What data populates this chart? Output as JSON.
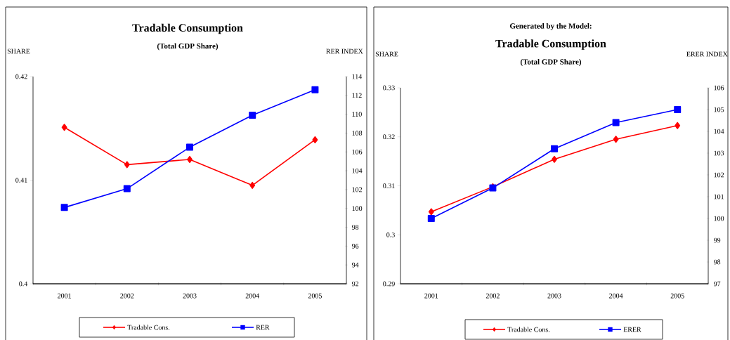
{
  "chart_data": [
    {
      "type": "line",
      "title": "Tradable Consumption",
      "subtitle": "(Total GDP Share)",
      "ylabel": "SHARE",
      "y2label": "RER INDEX",
      "categories": [
        "2001",
        "2002",
        "2003",
        "2004",
        "2005"
      ],
      "series": [
        {
          "name": "Tradable Cons.",
          "color": "#ff0000",
          "marker": "diamond",
          "values": [
            0.4151,
            0.4115,
            0.412,
            0.4095,
            0.4139
          ]
        },
        {
          "name": "RER",
          "color": "#0000ff",
          "marker": "square",
          "axis": "y2",
          "values": [
            100.1,
            102.1,
            106.5,
            109.9,
            112.6
          ]
        }
      ],
      "ylim": [
        0.4,
        0.42
      ],
      "yticks": [
        0.4,
        0.41,
        0.42
      ],
      "y2lim": [
        92,
        114
      ],
      "y2ticks": [
        92,
        94,
        96,
        98,
        100,
        102,
        104,
        106,
        108,
        110,
        112,
        114
      ],
      "legend": "bottom"
    },
    {
      "type": "line",
      "title": "Tradable Consumption",
      "subtitle": "(Total GDP Share)",
      "annotations": [
        "Generated by the Model:"
      ],
      "ylabel": "SHARE",
      "y2label": "ERER INDEX",
      "categories": [
        "2001",
        "2002",
        "2003",
        "2004",
        "2005"
      ],
      "series": [
        {
          "name": "Tradable Cons.",
          "color": "#ff0000",
          "marker": "diamond",
          "values": [
            0.3047,
            0.3098,
            0.3154,
            0.3195,
            0.3223
          ]
        },
        {
          "name": "ERER",
          "color": "#0000ff",
          "marker": "square",
          "axis": "y2",
          "values": [
            100.0,
            101.4,
            103.2,
            104.4,
            105.0
          ]
        }
      ],
      "ylim": [
        0.29,
        0.33
      ],
      "yticks": [
        0.29,
        0.3,
        0.31,
        0.32,
        0.33
      ],
      "y2lim": [
        97,
        106
      ],
      "y2ticks": [
        97,
        98,
        99,
        100,
        101,
        102,
        103,
        104,
        105,
        106
      ],
      "legend": "bottom"
    }
  ]
}
